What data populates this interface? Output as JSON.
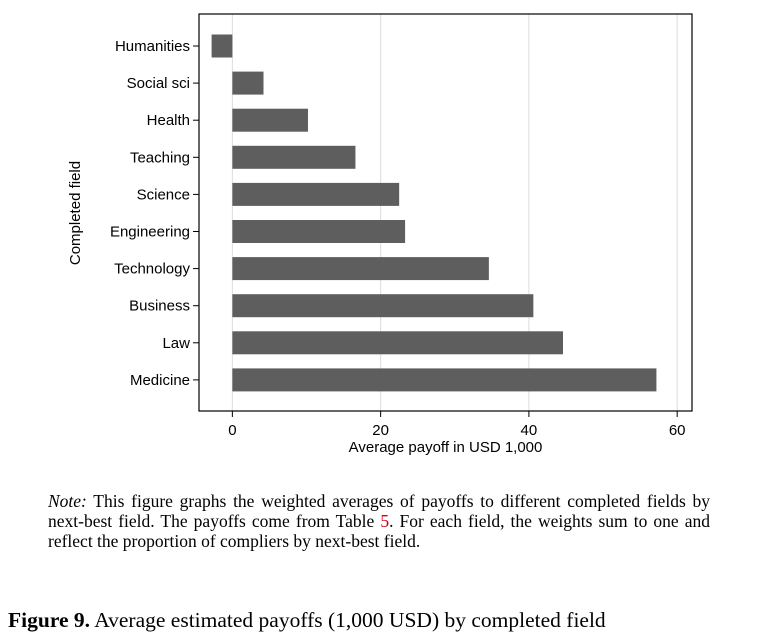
{
  "chart_data": {
    "type": "bar",
    "orientation": "horizontal",
    "categories": [
      "Humanities",
      "Social sci",
      "Health",
      "Teaching",
      "Science",
      "Engineering",
      "Technology",
      "Business",
      "Law",
      "Medicine"
    ],
    "values": [
      -2.8,
      4.2,
      10.2,
      16.6,
      22.5,
      23.3,
      34.6,
      40.6,
      44.6,
      57.2
    ],
    "xlabel": "Average payoff in USD 1,000",
    "ylabel": "Completed field",
    "xlim": [
      -4.5,
      62
    ],
    "xticks": [
      0,
      20,
      40,
      60
    ],
    "grid": "vertical",
    "bar_color": "#5e5e5e",
    "grid_color": "#dcdcdc"
  },
  "note": {
    "label": "Note:",
    "text_before_ref": " This figure graphs the weighted averages of payoffs to different completed fields by next-best field. The payoffs come from Table ",
    "ref": "5",
    "text_after_ref": ". For each field, the weights sum to one and reflect the proportion of compliers by next-best field."
  },
  "caption": {
    "label": "Figure 9.",
    "text": " Average estimated payoffs (1,000 USD) by completed field"
  }
}
